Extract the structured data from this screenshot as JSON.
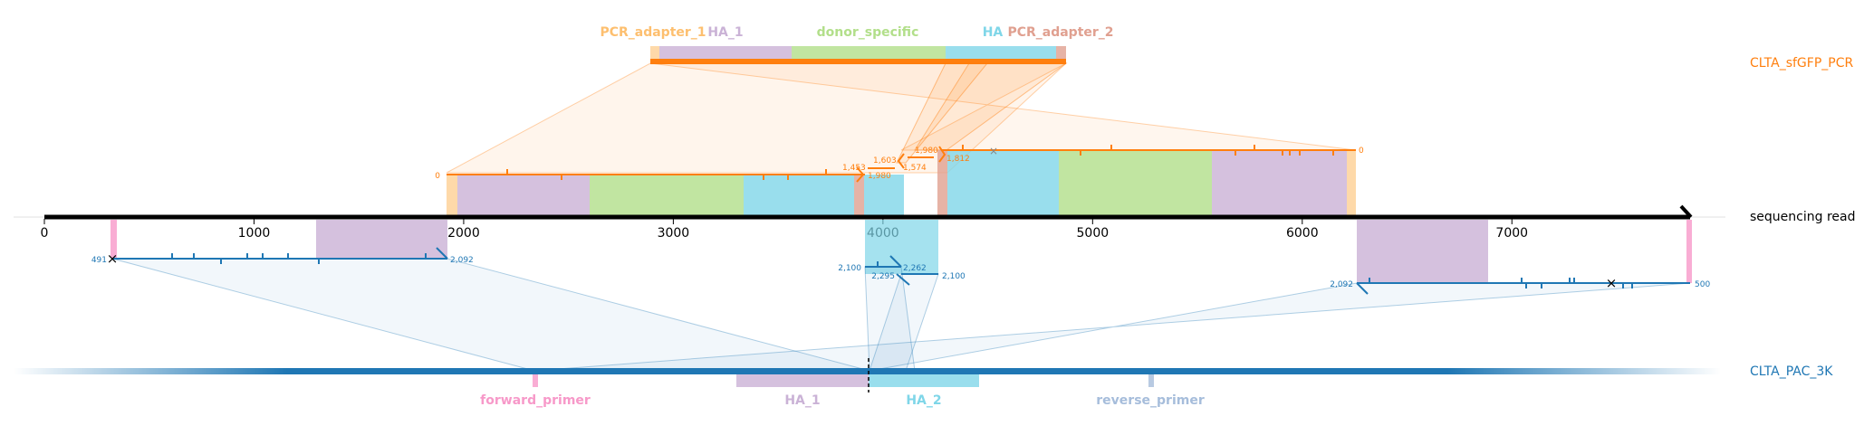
{
  "tracks": {
    "pcr": "CLTA_sfGFP_PCR",
    "read": "sequencing read",
    "ref": "CLTA_PAC_3K"
  },
  "axis": {
    "min": 0,
    "max": 7850,
    "ticks": [
      0,
      1000,
      2000,
      3000,
      4000,
      5000,
      6000,
      7000
    ]
  },
  "pcr_features": {
    "pcr_adapter_1": "PCR_adapter_1",
    "ha_1": "HA_1",
    "donor_specific": "donor_specific",
    "ha": "HA",
    "pcr_adapter_2": "PCR_adapter_2"
  },
  "ref_features": {
    "forward_primer": "forward_primer",
    "ha_1": "HA_1",
    "ha_2": "HA_2",
    "reverse_primer": "reverse_primer"
  },
  "alignment_labels": {
    "top_left_start": "0",
    "top_left_end": "1,980",
    "top_mid_a": "1,453",
    "top_mid_b": "1,603",
    "top_mid_c": "1,574",
    "top_right_a": "1,980",
    "top_right_b": "1,812",
    "top_right_end": "0",
    "bot_left_start": "491",
    "bot_left_end": "2,092",
    "bot_mid_a": "2,100",
    "bot_mid_b": "2,262",
    "bot_mid_c": "2,295",
    "bot_mid_d": "2,100",
    "bot_right_start": "2,092",
    "bot_right_end": "500"
  },
  "colors": {
    "pcr_adapter": "#fdbf6f",
    "ha_1": "#cab2d6",
    "donor_specific": "#b2df8a",
    "ha_2": "#7fd6e8",
    "pcr_adapter_2": "#e0a090",
    "forward_primer": "#f799c9",
    "reverse_primer": "#a6bddb",
    "orange": "#ff7f0e",
    "blue": "#1f77b4"
  }
}
